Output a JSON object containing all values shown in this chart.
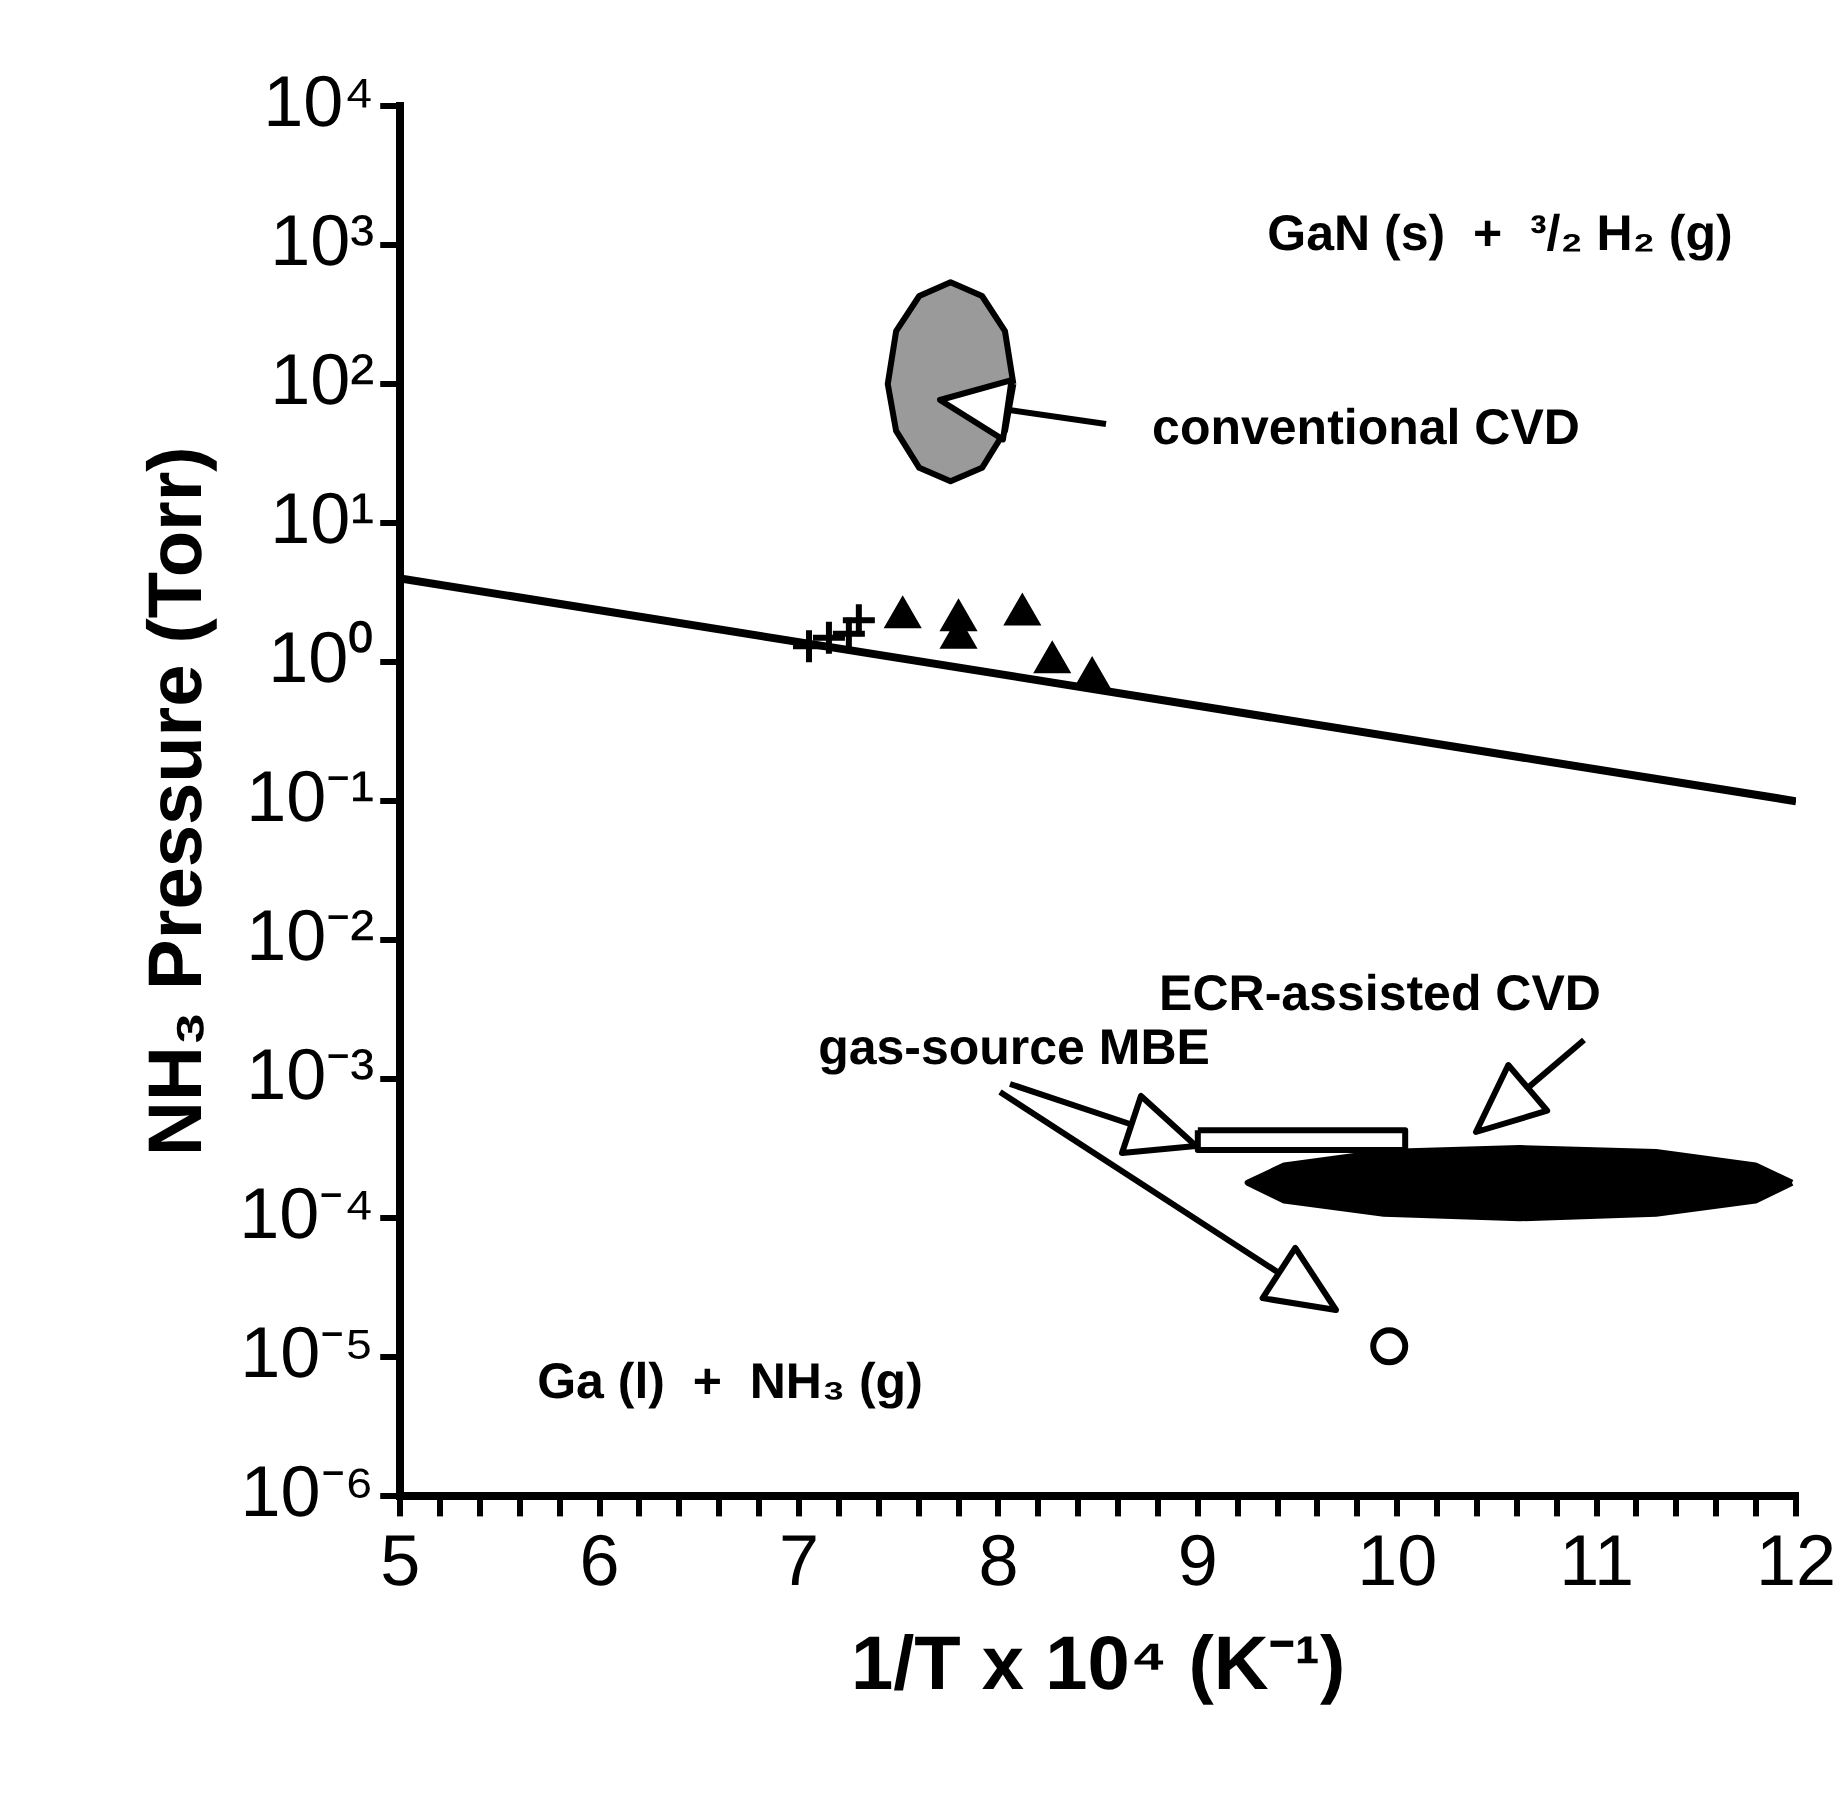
{
  "chart_data": {
    "type": "scatter",
    "xlabel": "1/T x 10⁴ (K⁻¹)",
    "ylabel": "NH₃ Pressure (Torr)",
    "log": "y",
    "xlim": [
      5,
      12
    ],
    "xticks": [
      5,
      {
        "value": 5.2,
        "label": null
      },
      {
        "value": 5.4,
        "label": null
      },
      {
        "value": 5.6,
        "label": null
      },
      {
        "value": 5.8,
        "label": null
      },
      6,
      {
        "value": 6.2,
        "label": null
      },
      {
        "value": 6.4,
        "label": null
      },
      {
        "value": 6.6,
        "label": null
      },
      {
        "value": 6.8,
        "label": null
      },
      7,
      {
        "value": 7.2,
        "label": null
      },
      {
        "value": 7.4,
        "label": null
      },
      {
        "value": 7.6,
        "label": null
      },
      {
        "value": 7.8,
        "label": null
      },
      8,
      {
        "value": 8.2,
        "label": null
      },
      {
        "value": 8.4,
        "label": null
      },
      {
        "value": 8.6,
        "label": null
      },
      {
        "value": 8.8,
        "label": null
      },
      9,
      {
        "value": 9.2,
        "label": null
      },
      {
        "value": 9.4,
        "label": null
      },
      {
        "value": 9.6,
        "label": null
      },
      {
        "value": 9.8,
        "label": null
      },
      10,
      {
        "value": 10.2,
        "label": null
      },
      {
        "value": 10.4,
        "label": null
      },
      {
        "value": 10.6,
        "label": null
      },
      {
        "value": 10.8,
        "label": null
      },
      11,
      {
        "value": 11.2,
        "label": null
      },
      {
        "value": 11.4,
        "label": null
      },
      {
        "value": 11.6,
        "label": null
      },
      {
        "value": 11.8,
        "label": null
      },
      12
    ],
    "ylim": [
      1e-06,
      10000
    ],
    "yticks": [
      {
        "value": 1e-06,
        "label": "10⁻⁶"
      },
      {
        "value": 1e-05,
        "label": "10⁻⁵"
      },
      {
        "value": 0.0001,
        "label": "10⁻⁴"
      },
      {
        "value": 0.001,
        "label": "10⁻³"
      },
      {
        "value": 0.01,
        "label": "10⁻²"
      },
      {
        "value": 0.1,
        "label": "10⁻¹"
      },
      {
        "value": 1,
        "label": "10⁰"
      },
      {
        "value": 10,
        "label": "10¹"
      },
      {
        "value": 100,
        "label": "10²"
      },
      {
        "value": 1000,
        "label": "10³"
      },
      {
        "value": 10000,
        "label": "10⁴"
      }
    ],
    "grid": false,
    "legend": false,
    "series": [
      {
        "type": "line",
        "color": "#000000",
        "x": [
          5,
          12
        ],
        "values": [
          4,
          0.1
        ],
        "marker": "none"
      },
      {
        "color": "#000000",
        "x": [
          7.05,
          7.15,
          7.25,
          7.3
        ],
        "values": [
          1.3,
          1.5,
          1.6,
          2
        ],
        "marker": "cross"
      },
      {
        "color": "#000000",
        "x": [
          7.52,
          7.8,
          8.12
        ],
        "values": [
          2.1,
          2.0,
          2.2
        ],
        "marker": "triangle"
      },
      {
        "color": "#000000",
        "x": [
          7.8,
          8.27,
          8.47
        ],
        "values": [
          1.5,
          1.0,
          0.77
        ],
        "marker": "triangle"
      },
      {
        "color": "#ffffff",
        "x": [
          9.96
        ],
        "values": [
          1.2e-05
        ],
        "marker": "circle"
      },
      {
        "type": "area",
        "color": "#9a9a9a",
        "x": [
          8.075,
          8.033,
          7.918,
          7.76,
          7.603,
          7.487,
          7.445,
          7.487,
          7.603,
          7.76,
          7.918,
          8.033,
          8.075
        ],
        "values": [
          100,
          240,
          430,
          540,
          430,
          240,
          100,
          46,
          25,
          20,
          25,
          46,
          100
        ]
      },
      {
        "type": "area",
        "color": "#000000",
        "x": [
          11.98,
          11.797,
          11.298,
          10.615,
          9.933,
          9.433,
          9.25,
          9.433,
          9.933,
          10.615,
          11.298,
          11.797,
          11.98
        ],
        "values": [
          0.00018,
          0.00024,
          0.0003,
          0.00032,
          0.0003,
          0.00024,
          0.00018,
          0.000134,
          0.000108,
          0.0001,
          0.000108,
          0.000134,
          0.00018
        ]
      },
      {
        "type": "area",
        "color": "#ffffff",
        "x": [
          9.0,
          10.04,
          10.04,
          9.0,
          9.0
        ],
        "values": [
          0.00043,
          0.00043,
          0.00031,
          0.00031,
          0.00043
        ]
      }
    ],
    "annotations": [
      "GaN (s)  +  ³/₂ H₂ (g)",
      "Ga (l)  +  NH₃ (g)",
      "conventional CVD",
      "ECR-assisted CVD",
      "gas-source MBE"
    ]
  }
}
